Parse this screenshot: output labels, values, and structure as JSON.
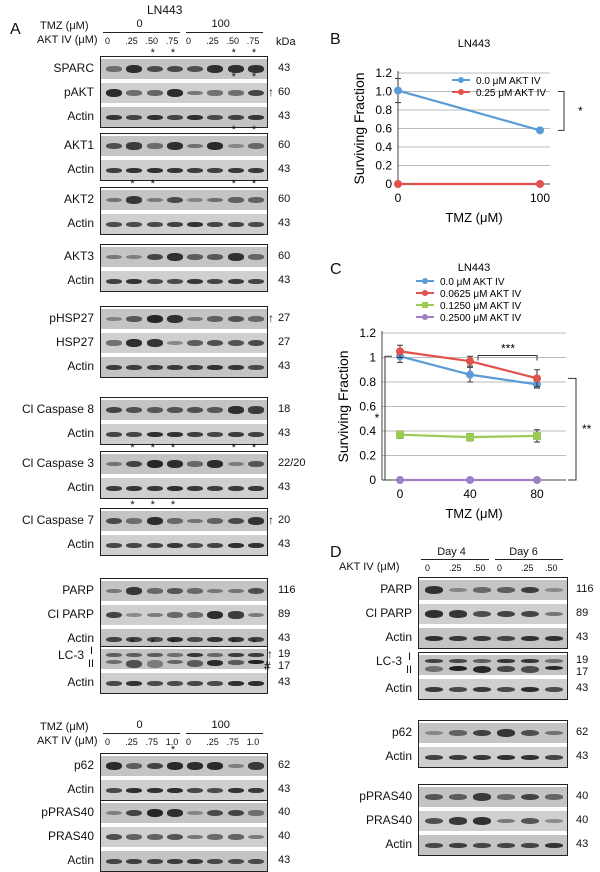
{
  "cell_line": "LN443",
  "panel_labels": {
    "a": "A",
    "b": "B",
    "c": "C",
    "d": "D"
  },
  "panel_a": {
    "tmz_label": "TMZ (μM)",
    "akt_label": "AKT IV (μM)",
    "tmz_groups": [
      "0",
      "100"
    ],
    "akt_doses": [
      "0",
      ".25",
      ".50",
      ".75",
      "0",
      ".25",
      ".50",
      ".75"
    ],
    "kda_header": "kDa",
    "blots": [
      {
        "rows": [
          {
            "label": "SPARC",
            "kda": "43",
            "stars": [
              2,
              3,
              6,
              7
            ]
          },
          {
            "label": "pAKT",
            "kda": "60",
            "arrow": true,
            "stars": [
              6,
              7
            ]
          },
          {
            "label": "Actin",
            "kda": "43"
          }
        ]
      },
      {
        "rows": [
          {
            "label": "AKT1",
            "kda": "60",
            "stars": [
              6,
              7
            ]
          },
          {
            "label": "Actin",
            "kda": "43"
          }
        ]
      },
      {
        "rows": [
          {
            "label": "AKT2",
            "kda": "60",
            "stars": [
              1,
              2,
              6,
              7
            ]
          },
          {
            "label": "Actin",
            "kda": "43"
          }
        ]
      },
      {
        "rows": [
          {
            "label": "AKT3",
            "kda": "60"
          },
          {
            "label": "Actin",
            "kda": "43"
          }
        ]
      },
      {
        "rows": [
          {
            "label": "pHSP27",
            "kda": "27",
            "arrow": true
          },
          {
            "label": "HSP27",
            "kda": "27"
          },
          {
            "label": "Actin",
            "kda": "43"
          }
        ]
      },
      {
        "rows": [
          {
            "label": "Cl Caspase 8",
            "kda": "18"
          },
          {
            "label": "Actin",
            "kda": "43"
          }
        ]
      },
      {
        "rows": [
          {
            "label": "Cl Caspase 3",
            "kda": "22/20",
            "stars": [
              1,
              2,
              3,
              6,
              7
            ]
          },
          {
            "label": "Actin",
            "kda": "43"
          }
        ]
      },
      {
        "rows": [
          {
            "label": "Cl Caspase 7",
            "kda": "20",
            "arrow": true,
            "stars": [
              1,
              2,
              3
            ]
          },
          {
            "label": "Actin",
            "kda": "43"
          }
        ]
      },
      {
        "rows": [
          {
            "label": "PARP",
            "kda": "116"
          },
          {
            "label": "Cl PARP",
            "kda": "89"
          },
          {
            "label": "Actin",
            "kda": "43"
          }
        ]
      },
      {
        "rows": [
          {
            "label": "LC-3",
            "sub": [
              "I",
              "II"
            ],
            "kda": "19",
            "kda2": "17",
            "hash": "#",
            "stars": [
              1,
              2,
              3,
              6,
              7
            ]
          },
          {
            "label": "Actin",
            "kda": "43"
          }
        ]
      }
    ],
    "second_tmz_groups": [
      "0",
      "100"
    ],
    "second_akt_doses": [
      "0",
      ".25",
      ".75",
      "1.0",
      "0",
      ".25",
      ".75",
      "1.0"
    ],
    "blots2": [
      {
        "rows": [
          {
            "label": "p62",
            "kda": "62",
            "stars": [
              3
            ]
          },
          {
            "label": "Actin",
            "kda": "43"
          }
        ]
      },
      {
        "rows": [
          {
            "label": "pPRAS40",
            "kda": "40"
          },
          {
            "label": "PRAS40",
            "kda": "40"
          },
          {
            "label": "Actin",
            "kda": "43"
          }
        ]
      }
    ],
    "star_symbol": "*",
    "arrow_symbol": "↑"
  },
  "chart_data": [
    {
      "type": "line",
      "title": "LN443",
      "xlabel": "TMZ (μM)",
      "ylabel": "Surviving Fraction",
      "categories": [
        "0",
        "100"
      ],
      "ylim": [
        0,
        1.2
      ],
      "yticks": [
        "0",
        "0.2",
        "0.4",
        "0.6",
        "0.8",
        "1.0",
        "1.2"
      ],
      "series": [
        {
          "name": "0.0   μM AKT IV",
          "values": [
            1.01,
            0.58
          ],
          "color": "#5b9bd5"
        },
        {
          "name": "0.25 μM AKT IV",
          "values": [
            0.0,
            0.0
          ],
          "color": "#e0524b"
        }
      ],
      "annotation": "*",
      "legend": "top-right",
      "grid": true
    },
    {
      "type": "line",
      "title": "LN443",
      "xlabel": "TMZ (μM)",
      "ylabel": "Surviving Fraction",
      "categories": [
        "0",
        "40",
        "80"
      ],
      "ylim": [
        0,
        1.2
      ],
      "yticks": [
        "0",
        "0.2",
        "0.4",
        "0.6",
        "0.8",
        "1",
        "1.2"
      ],
      "series": [
        {
          "name": "0.0      μM AKT IV",
          "values": [
            1.01,
            0.86,
            0.78
          ],
          "color": "#5b9bd5"
        },
        {
          "name": "0.0625 μM AKT IV",
          "values": [
            1.05,
            0.97,
            0.83
          ],
          "color": "#e0524b"
        },
        {
          "name": "0.1250 μM AKT IV",
          "values": [
            0.37,
            0.35,
            0.36
          ],
          "color": "#9bcb53"
        },
        {
          "name": "0.2500 μM AKT IV",
          "values": [
            0.0,
            0.0,
            0.0
          ],
          "color": "#9f7fc7"
        }
      ],
      "annotations": [
        "***",
        "*",
        "**"
      ],
      "legend": "top",
      "grid": true
    }
  ],
  "panel_d": {
    "akt_label": "AKT IV (μM)",
    "days": [
      "Day 4",
      "Day 6"
    ],
    "akt_doses": [
      "0",
      ".25",
      ".50",
      "0",
      ".25",
      ".50"
    ],
    "blots": [
      {
        "rows": [
          {
            "label": "PARP",
            "kda": "116"
          },
          {
            "label": "Cl PARP",
            "kda": "89"
          },
          {
            "label": "Actin",
            "kda": "43"
          }
        ]
      },
      {
        "rows": [
          {
            "label": "LC-3",
            "sub": [
              "I",
              "II"
            ],
            "kda": "19",
            "kda2": "17"
          },
          {
            "label": "Actin",
            "kda": "43"
          }
        ]
      },
      {
        "rows": [
          {
            "label": "p62",
            "kda": "62"
          },
          {
            "label": "Actin",
            "kda": "43"
          }
        ]
      },
      {
        "rows": [
          {
            "label": "pPRAS40",
            "kda": "40"
          },
          {
            "label": "PRAS40",
            "kda": "40"
          },
          {
            "label": "Actin",
            "kda": "43"
          }
        ]
      }
    ]
  }
}
